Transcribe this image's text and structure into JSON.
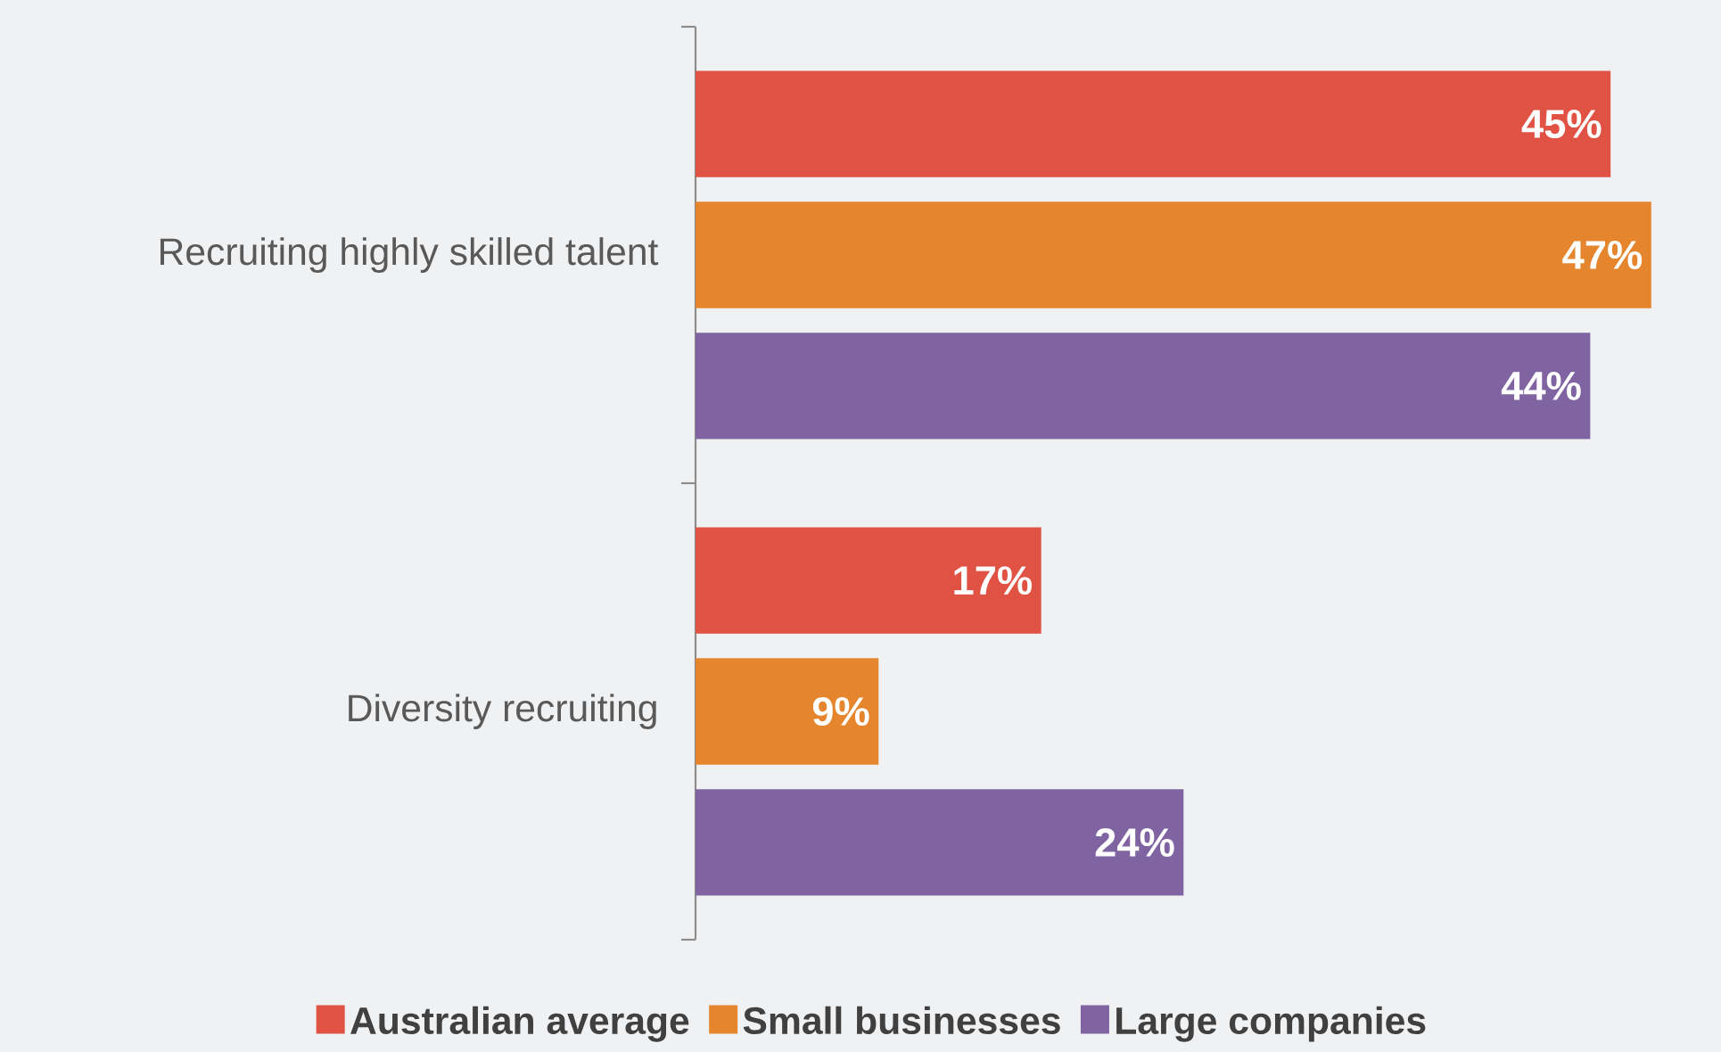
{
  "chart_data": {
    "type": "bar",
    "orientation": "horizontal",
    "categories": [
      "Recruiting highly skilled talent",
      "Diversity recruiting"
    ],
    "series": [
      {
        "name": "Australian average",
        "color": "#e05243",
        "values": [
          45,
          17
        ],
        "value_labels": [
          "45%",
          "17%"
        ]
      },
      {
        "name": "Small businesses",
        "color": "#e5862e",
        "values": [
          47,
          9
        ],
        "value_labels": [
          "47%",
          "9%"
        ]
      },
      {
        "name": "Large companies",
        "color": "#8064a2",
        "values": [
          44,
          24
        ],
        "value_labels": [
          "44%",
          "24%"
        ]
      }
    ],
    "legend": "bottom"
  }
}
